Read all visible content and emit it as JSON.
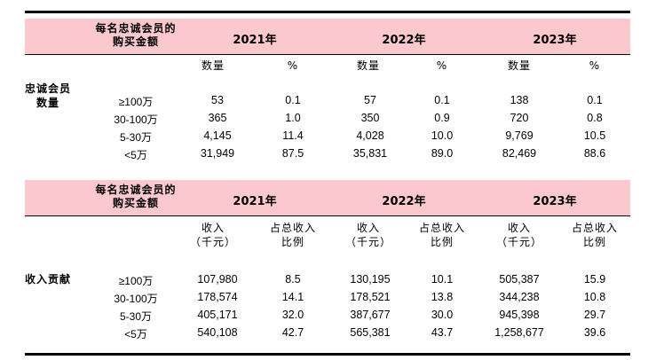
{
  "table1": {
    "header_label": [
      "每名忠诚会员的",
      "购买金额"
    ],
    "years": [
      "2021年",
      "2022年",
      "2023年"
    ],
    "subheaders": [
      "数量",
      "%",
      "数量",
      "%",
      "数量",
      "%"
    ],
    "side_label": [
      "忠诚会员",
      "数量"
    ],
    "rows": [
      {
        "label": "≥100万",
        "values": [
          "53",
          "0.1",
          "57",
          "0.1",
          "138",
          "0.1"
        ]
      },
      {
        "label": "30-100万",
        "values": [
          "365",
          "1.0",
          "350",
          "0.9",
          "720",
          "0.8"
        ]
      },
      {
        "label": "5-30万",
        "values": [
          "4,145",
          "11.4",
          "4,028",
          "10.0",
          "9,769",
          "10.5"
        ]
      },
      {
        "label": "<5万",
        "values": [
          "31,949",
          "87.5",
          "35,831",
          "89.0",
          "82,469",
          "88.6"
        ]
      }
    ]
  },
  "table2": {
    "header_label": [
      "每名忠诚会员的",
      "购买金额"
    ],
    "years": [
      "2021年",
      "2022年",
      "2023年"
    ],
    "subheaders": [
      [
        "收入",
        "（千元）"
      ],
      [
        "占总收入",
        "比例"
      ],
      [
        "收入",
        "（千元）"
      ],
      [
        "占总收入",
        "比例"
      ],
      [
        "收入",
        "（千元）"
      ],
      [
        "占总收入",
        "比例"
      ]
    ],
    "side_label": [
      "收入贡献"
    ],
    "rows": [
      {
        "label": "≥100万",
        "values": [
          "107,980",
          "8.5",
          "130,195",
          "10.1",
          "505,387",
          "15.9"
        ]
      },
      {
        "label": "30-100万",
        "values": [
          "178,574",
          "14.1",
          "178,521",
          "13.8",
          "344,238",
          "10.8"
        ]
      },
      {
        "label": "5-30万",
        "values": [
          "405,171",
          "32.0",
          "387,677",
          "30.0",
          "945,398",
          "29.7"
        ]
      },
      {
        "label": "<5万",
        "values": [
          "540,108",
          "42.7",
          "565,381",
          "43.7",
          "1,258,677",
          "39.6"
        ]
      }
    ]
  }
}
